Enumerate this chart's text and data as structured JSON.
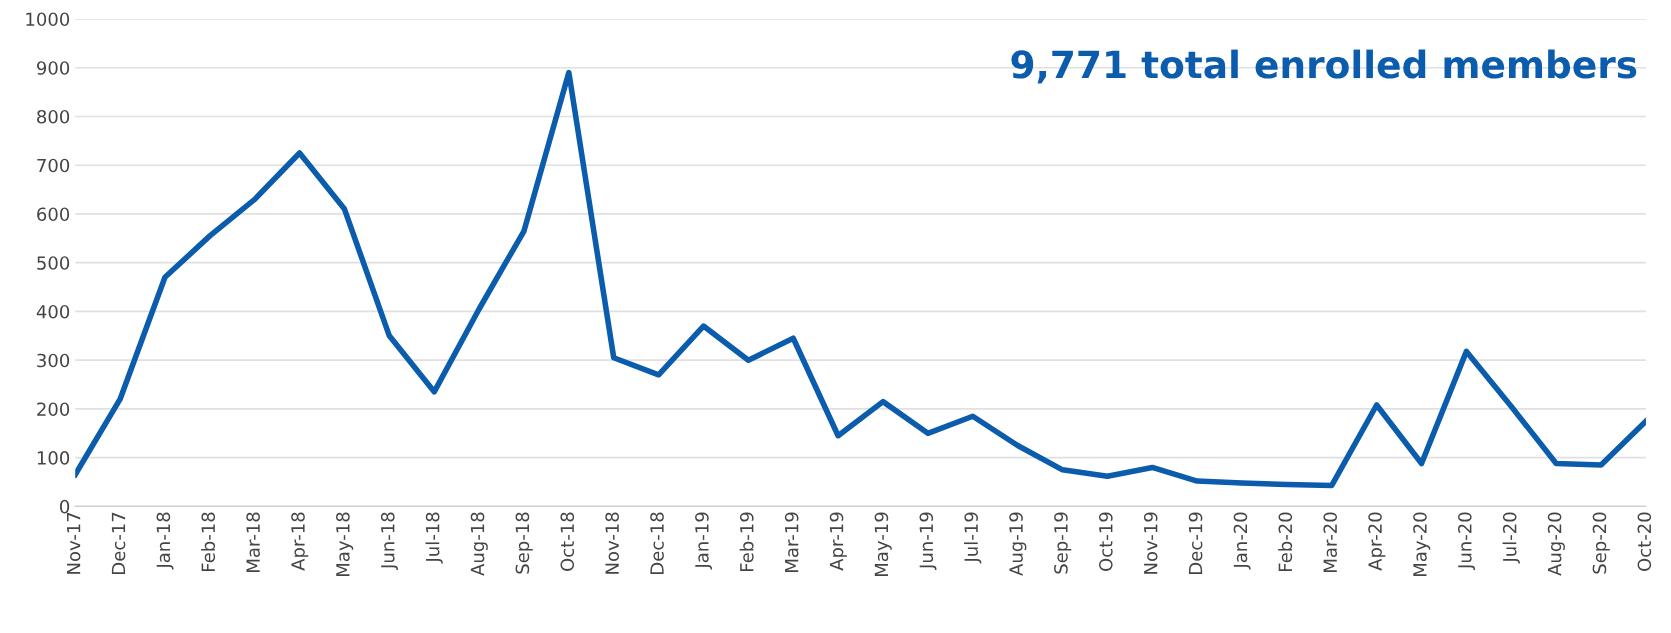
{
  "chart_data": {
    "type": "line",
    "categories": [
      "Nov-17",
      "Dec-17",
      "Jan-18",
      "Feb-18",
      "Mar-18",
      "Apr-18",
      "May-18",
      "Jun-18",
      "Jul-18",
      "Aug-18",
      "Sep-18",
      "Oct-18",
      "Nov-18",
      "Dec-18",
      "Jan-19",
      "Feb-19",
      "Mar-19",
      "Apr-19",
      "May-19",
      "Jun-19",
      "Jul-19",
      "Aug-19",
      "Sep-19",
      "Oct-19",
      "Nov-19",
      "Dec-19",
      "Jan-20",
      "Feb-20",
      "Mar-20",
      "Apr-20",
      "May-20",
      "Jun-20",
      "Jul-20",
      "Aug-20",
      "Sep-20",
      "Oct-20"
    ],
    "series": [
      {
        "color": "#0b5cad",
        "values": [
          65,
          220,
          470,
          555,
          630,
          725,
          610,
          350,
          235,
          405,
          565,
          890,
          305,
          270,
          370,
          300,
          345,
          145,
          215,
          150,
          185,
          125,
          75,
          62,
          80,
          52,
          48,
          45,
          43,
          208,
          88,
          318,
          205,
          88,
          85,
          175
        ]
      }
    ],
    "annotations": [
      "9,771 total enrolled members"
    ],
    "ylim": [
      0,
      1000
    ],
    "yticks": [
      0,
      100,
      200,
      300,
      400,
      500,
      600,
      700,
      800,
      900,
      1000
    ],
    "grid": "y",
    "legend": false,
    "marker": "none",
    "line_style": "solid"
  }
}
